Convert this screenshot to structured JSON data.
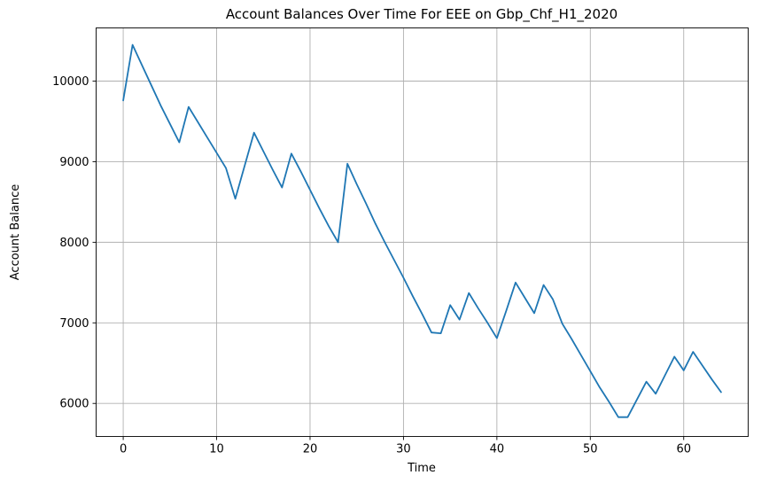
{
  "chart_data": {
    "type": "line",
    "title": "Account Balances Over Time For EEE on Gbp_Chf_H1_2020",
    "xlabel": "Time",
    "ylabel": "Account Balance",
    "xlim": [
      -2.9,
      66.9
    ],
    "ylim": [
      5590,
      10660
    ],
    "xticks": [
      0,
      10,
      20,
      30,
      40,
      50,
      60
    ],
    "yticks": [
      6000,
      7000,
      8000,
      9000,
      10000
    ],
    "grid": true,
    "line_color": "#1f77b4",
    "series": [
      {
        "x": [
          0,
          1,
          2,
          3,
          4,
          5,
          6,
          7,
          8,
          9,
          10,
          11,
          12,
          13,
          14,
          15,
          16,
          17,
          18,
          19,
          20,
          21,
          22,
          23,
          24,
          25,
          26,
          27,
          28,
          29,
          30,
          31,
          32,
          33,
          34,
          35,
          36,
          37,
          38,
          39,
          40,
          41,
          42,
          43,
          44,
          45,
          46,
          47,
          48,
          49,
          50,
          51,
          52,
          53,
          54,
          55,
          56,
          57,
          58,
          59,
          60,
          61,
          62,
          63,
          64
        ],
        "values": [
          9760,
          10450,
          10200,
          9950,
          9700,
          9470,
          9240,
          9680,
          9490,
          9300,
          9110,
          8920,
          8540,
          8950,
          9360,
          9130,
          8900,
          8680,
          9100,
          8880,
          8650,
          8420,
          8200,
          8000,
          8975,
          8720,
          8480,
          8230,
          8000,
          7780,
          7560,
          7330,
          7110,
          6880,
          6870,
          7220,
          7040,
          7370,
          7180,
          7000,
          6810,
          7150,
          7500,
          7310,
          7120,
          7470,
          7290,
          6990,
          6800,
          6600,
          6400,
          6200,
          6020,
          5830,
          5830,
          6050,
          6270,
          6120,
          6350,
          6580,
          6410,
          6640,
          6470,
          6300,
          6140
        ]
      }
    ]
  }
}
